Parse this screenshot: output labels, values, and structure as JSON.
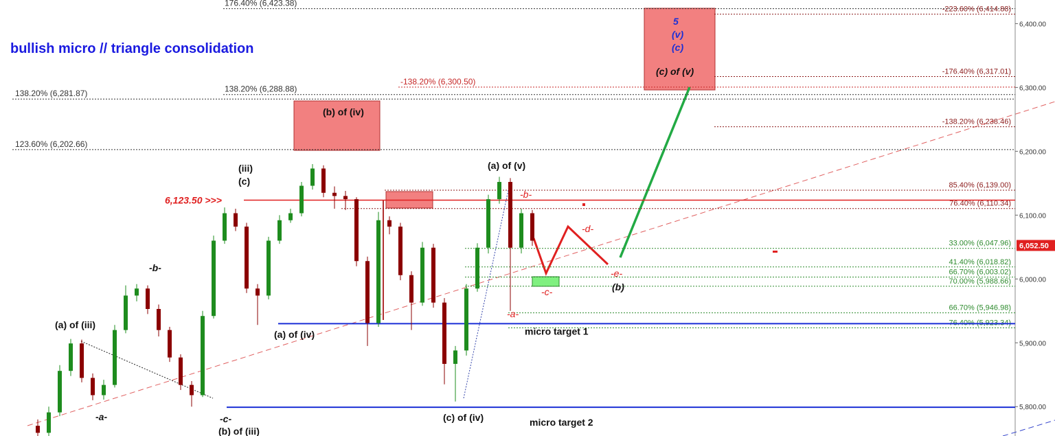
{
  "chart_data": {
    "type": "candlestick",
    "title": "bullish micro // triangle consolidation",
    "open": [
      5770,
      5759,
      5791,
      5856,
      5899,
      5845,
      5818,
      5834,
      5920,
      5974,
      5985,
      5953,
      5920,
      5877,
      5834,
      5818,
      5942,
      6060,
      6103,
      6082,
      5985,
      5974,
      6060,
      6092,
      6103,
      6146,
      6173,
      6135,
      6130,
      6125,
      6028,
      5931,
      6092,
      6082,
      6006,
      5963,
      6049,
      5963,
      5867,
      5888,
      5985,
      6049,
      6125,
      6152,
      6049,
      6103
    ],
    "high": [
      5780,
      5800,
      5865,
      5906,
      5905,
      5852,
      5842,
      5928,
      5990,
      5992,
      5990,
      5960,
      5925,
      5882,
      5840,
      5950,
      6068,
      6112,
      6110,
      6088,
      5992,
      6066,
      6100,
      6110,
      6152,
      6180,
      6178,
      6145,
      6138,
      6128,
      6035,
      6105,
      6098,
      6088,
      6012,
      6058,
      6055,
      5970,
      5895,
      5992,
      6056,
      6132,
      6160,
      6158,
      6110,
      6108
    ],
    "low": [
      5750,
      5752,
      5785,
      5848,
      5838,
      5810,
      5811,
      5830,
      5915,
      5965,
      5945,
      5910,
      5870,
      5826,
      5800,
      5815,
      5938,
      6055,
      6075,
      5978,
      5928,
      5968,
      6055,
      6088,
      6098,
      6140,
      6128,
      6110,
      6108,
      6020,
      5895,
      5925,
      6070,
      5998,
      5920,
      5958,
      5955,
      5835,
      5808,
      5880,
      5980,
      6040,
      6118,
      5950,
      6040,
      6052
    ],
    "close": [
      5759,
      5791,
      5856,
      5899,
      5845,
      5818,
      5834,
      5920,
      5974,
      5985,
      5953,
      5920,
      5877,
      5834,
      5818,
      5942,
      6060,
      6103,
      6082,
      5985,
      5974,
      6060,
      6092,
      6103,
      6146,
      6173,
      6135,
      6130,
      6125,
      6028,
      5931,
      6092,
      6082,
      6006,
      5963,
      6049,
      5963,
      5867,
      5888,
      5985,
      6049,
      6125,
      6152,
      6049,
      6103,
      6060
    ],
    "up_color": "#1e8c1e",
    "down_color": "#8b0000",
    "ylim": [
      5754,
      6437
    ],
    "yticks": [
      {
        "value": 5800,
        "label": "5,800.00"
      },
      {
        "value": 5900,
        "label": "5,900.00"
      },
      {
        "value": 6000,
        "label": "6,000.00"
      },
      {
        "value": 6100,
        "label": "6,100.00"
      },
      {
        "value": 6200,
        "label": "6,200.00"
      },
      {
        "value": 6300,
        "label": "6,300.00"
      },
      {
        "value": 6400,
        "label": "6,400.00"
      }
    ],
    "levels": [
      {
        "value": 6423.38,
        "label": "176.40% (6,423.38)",
        "color": "#333333"
      },
      {
        "value": 6288.88,
        "label": "138.20% (6,288.88)",
        "color": "#333333"
      },
      {
        "value": 6281.87,
        "label": "138.20% (6,281.87)",
        "color": "#333333"
      },
      {
        "value": 6202.66,
        "label": "123.60% (6,202.66)",
        "color": "#333333"
      },
      {
        "value": 6300.5,
        "label": "-138.20% (6,300.50)",
        "color": "#c62828"
      },
      {
        "value": 6414.88,
        "label": "-223.60% (6,414.88)",
        "color": "#8b1a1a"
      },
      {
        "value": 6317.01,
        "label": "-176.40% (6,317.01)",
        "color": "#8b1a1a"
      },
      {
        "value": 6238.46,
        "label": "-138.20% (6,238.46)",
        "color": "#8b1a1a"
      },
      {
        "value": 6139,
        "label": "85.40% (6,139.00)",
        "color": "#8b1a1a"
      },
      {
        "value": 6110.34,
        "label": "76.40% (6,110.34)",
        "color": "#8b1a1a"
      },
      {
        "value": 6047.96,
        "label": "33.00% (6,047.96)",
        "color": "#2e8b2e"
      },
      {
        "value": 6018.82,
        "label": "41.40% (6,018.82)",
        "color": "#2e8b2e"
      },
      {
        "value": 6003.02,
        "label": "66.70% (6,003.02)",
        "color": "#2e8b2e"
      },
      {
        "value": 5988.66,
        "label": "70.00% (5,988.66)",
        "color": "#2e8b2e"
      },
      {
        "value": 5946.98,
        "label": "66.70% (5,946.98)",
        "color": "#2e8b2e"
      },
      {
        "value": 5923.34,
        "label": "76.40% (5,923.34)",
        "color": "#2e8b2e"
      }
    ],
    "marker": {
      "value": 6123.5,
      "label": "6,123.50 >>>",
      "color": "#e02020"
    },
    "last_price": {
      "value": 6052.5,
      "label": "6,052.50",
      "color": "#e02020"
    },
    "targets": [
      {
        "value": 5930,
        "label": "micro target 1",
        "color": "#1a2fd6"
      },
      {
        "value": 5799,
        "label": "micro target 2",
        "color": "#1a2fd6"
      }
    ],
    "annotations": [
      "(a) of (iii)",
      "-a-",
      "-b-",
      "-c-",
      "(b) of (iii)",
      "(iii)",
      "(c)",
      "(a) of (iv)",
      "(b) of (iv)",
      "(c) of (iv)",
      "(a) of (v)",
      "-b-",
      "-a-",
      "-c-",
      "-d-",
      "-e-",
      "(b)",
      "5",
      "(v)",
      "(c)",
      "(c) of (v)"
    ]
  }
}
